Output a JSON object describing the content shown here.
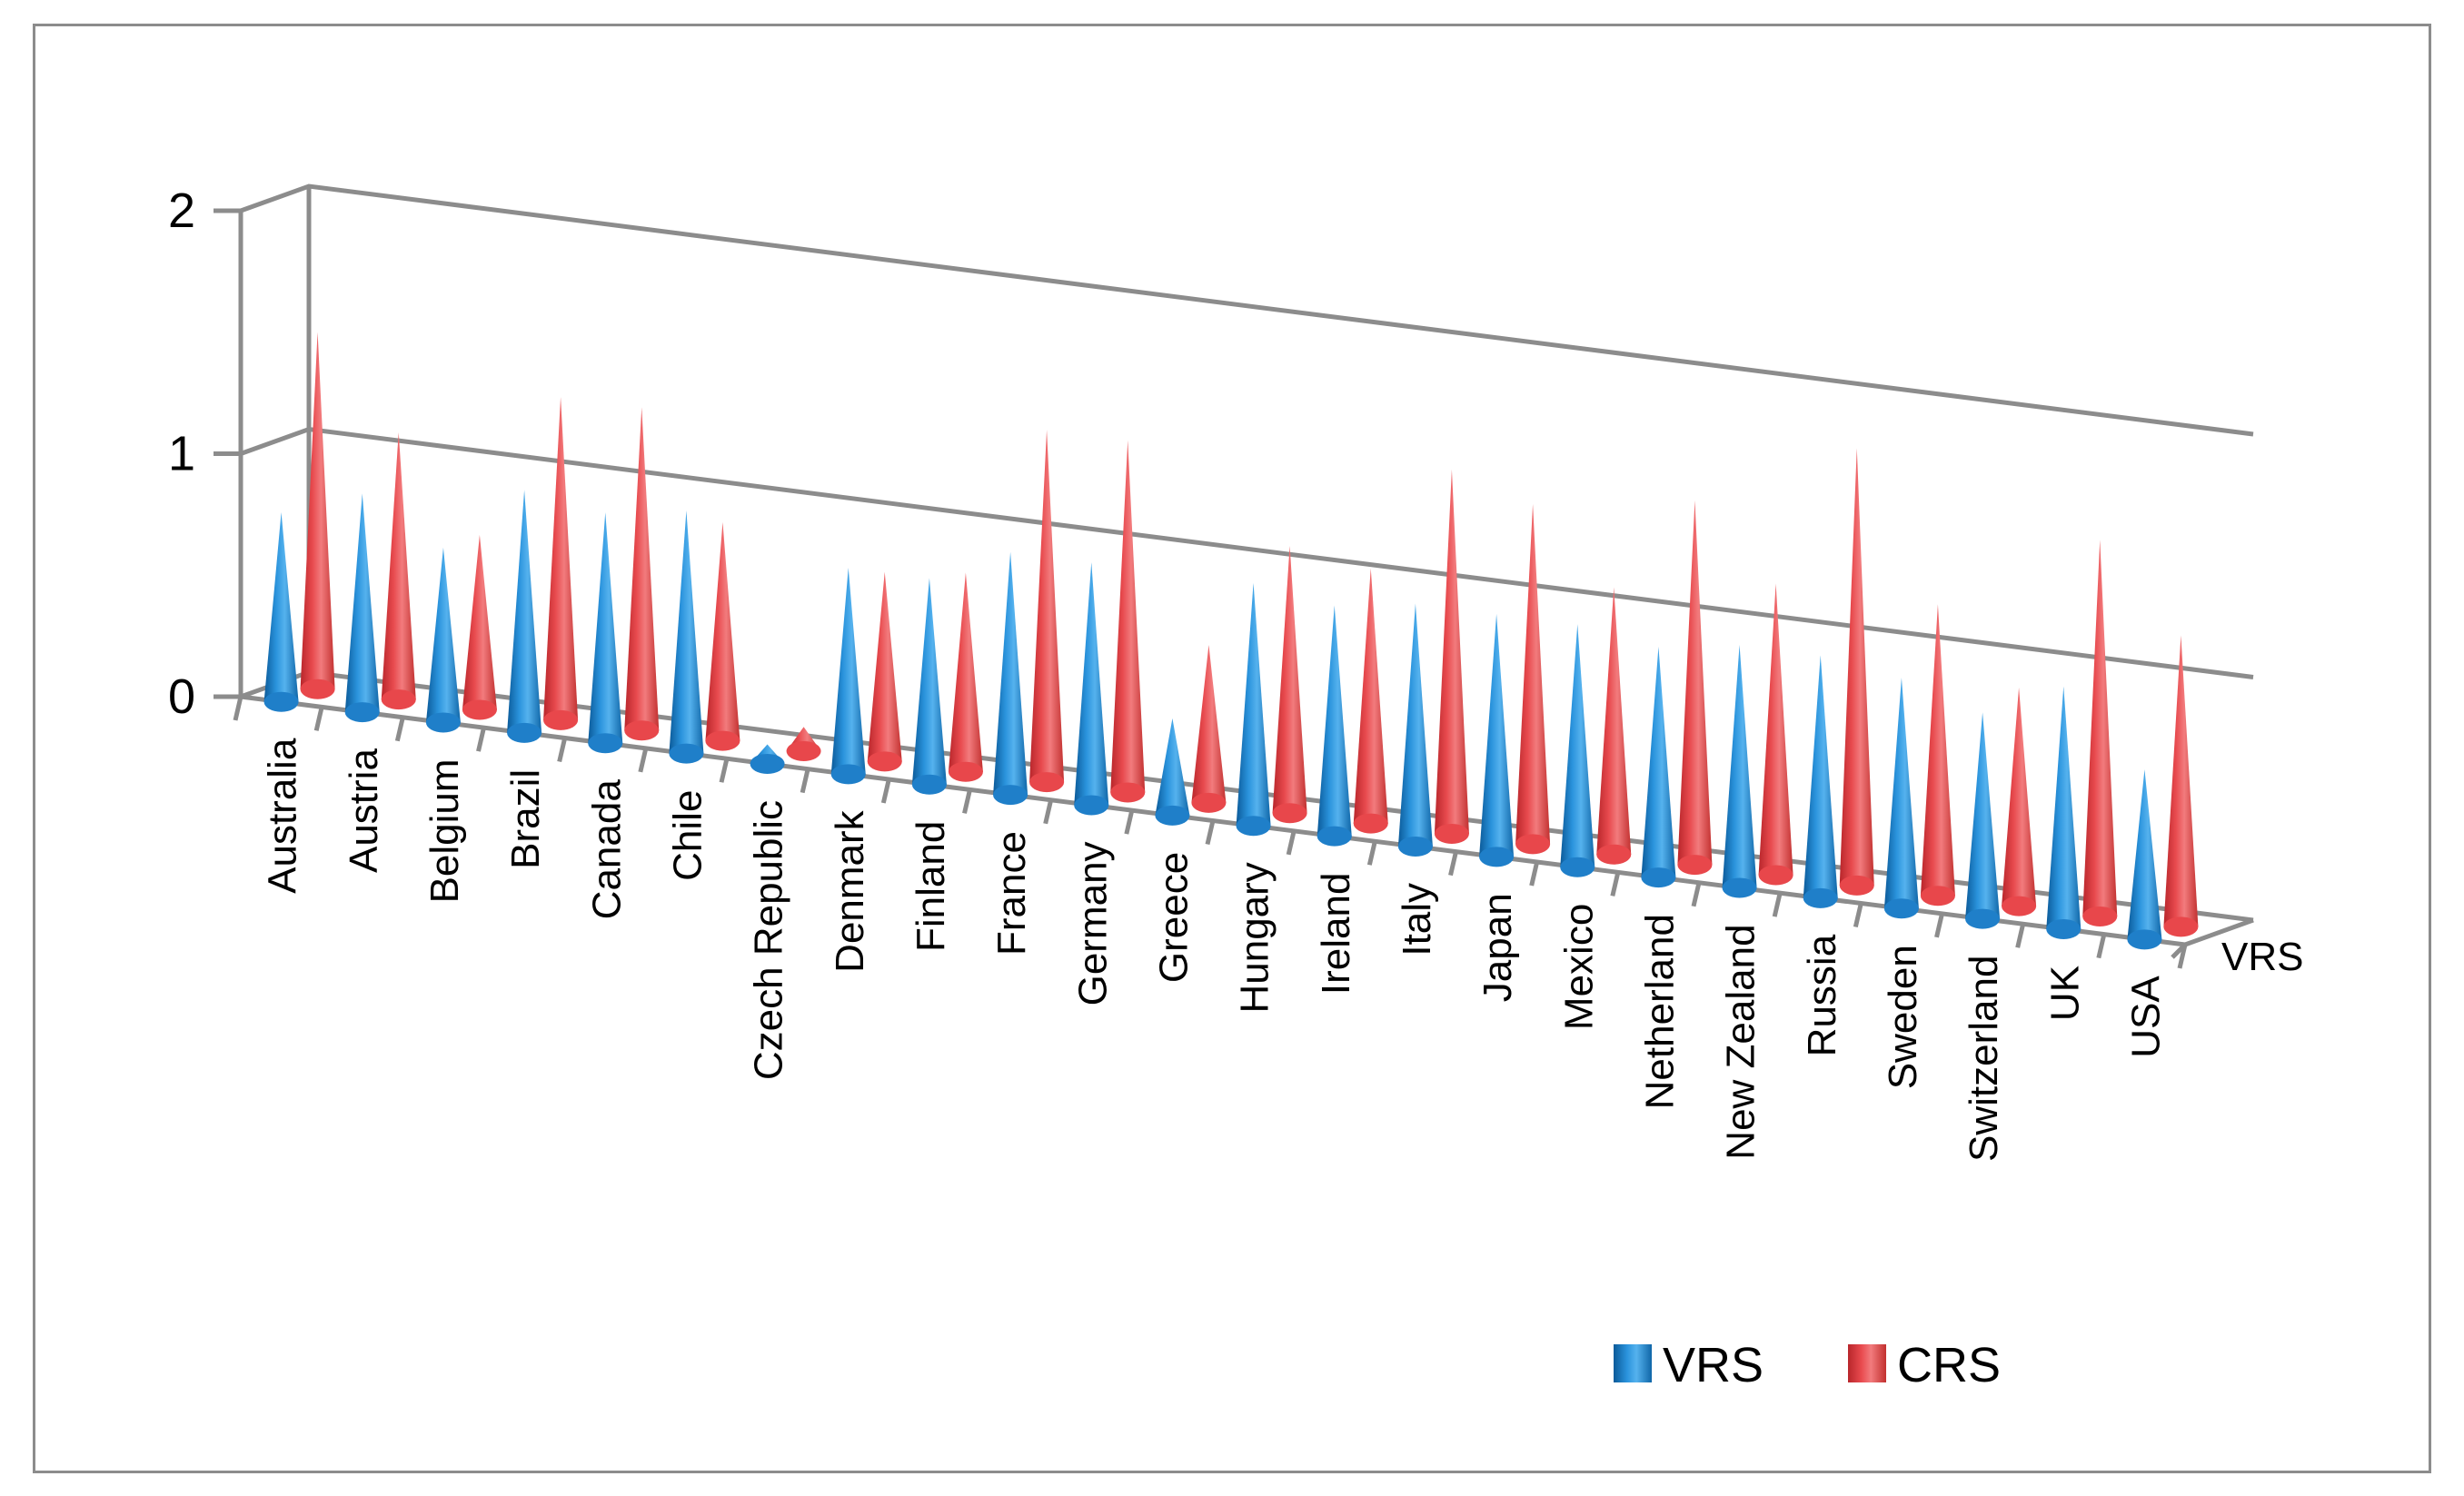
{
  "chart_data": {
    "type": "bar",
    "subtype": "3d-cone",
    "title": "",
    "xlabel": "",
    "ylabel": "",
    "ylim": [
      0,
      2
    ],
    "yticks": [
      "0",
      "1",
      "2"
    ],
    "depth_axis_label": "VRS",
    "grid": true,
    "legend_position": "bottom-right",
    "categories": [
      "Australia",
      "Austria",
      "Belgium",
      "Brazil",
      "Canada",
      "Chile",
      "Czech Republic",
      "Denmark",
      "Finland",
      "France",
      "Germany",
      "Greece",
      "Hungary",
      "Ireland",
      "Italy",
      "Japan",
      "Mexico",
      "Netherland",
      "New Zealand",
      "Russia",
      "Sweden",
      "Switzerland",
      "UK",
      "USA"
    ],
    "series": [
      {
        "name": "VRS",
        "color": "#1f7fc9",
        "values": [
          0.78,
          0.9,
          0.72,
          1.0,
          0.95,
          1.0,
          0.08,
          0.85,
          0.85,
          1.0,
          1.0,
          0.4,
          1.0,
          0.95,
          1.0,
          1.0,
          1.0,
          0.95,
          1.0,
          1.0,
          0.95,
          0.85,
          1.0,
          0.7
        ]
      },
      {
        "name": "CRS",
        "color": "#e8474b",
        "values": [
          1.47,
          1.1,
          0.72,
          1.33,
          1.33,
          0.9,
          0.1,
          0.78,
          0.82,
          1.45,
          1.45,
          0.65,
          1.1,
          1.05,
          1.5,
          1.4,
          1.1,
          1.5,
          1.2,
          1.8,
          1.2,
          0.9,
          1.55,
          1.2
        ]
      }
    ]
  }
}
